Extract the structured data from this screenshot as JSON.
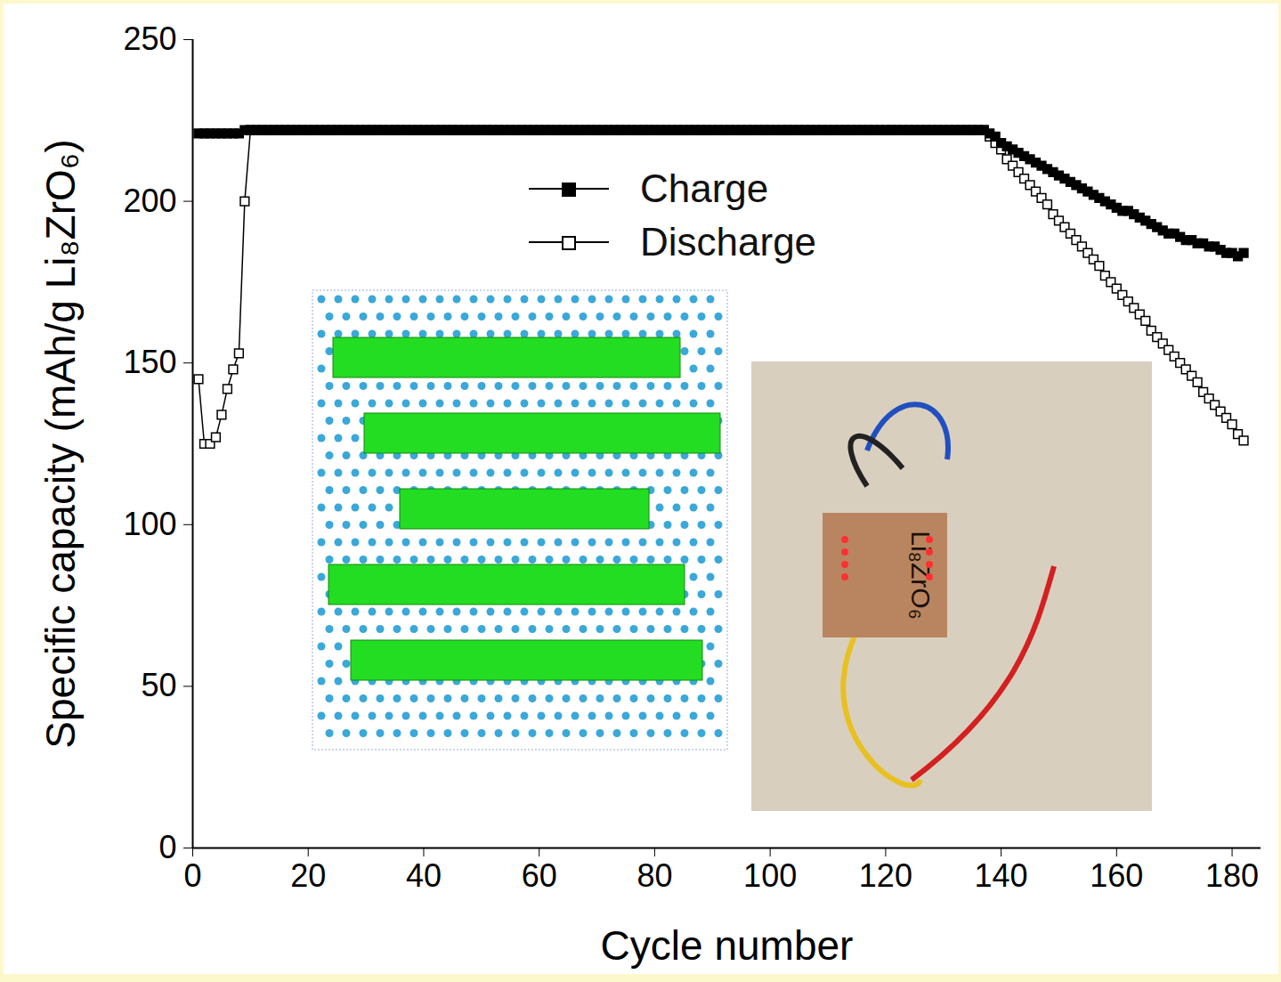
{
  "chart_data": {
    "type": "line",
    "x_label": "Cycle number",
    "y_label": "Specific capacity (mAh/g Li₈ZrO₆)",
    "xlim": [
      0,
      185
    ],
    "xticks": [
      0,
      20,
      40,
      60,
      80,
      100,
      120,
      140,
      160,
      180
    ],
    "ylim": [
      0,
      250
    ],
    "yticks": [
      0,
      50,
      100,
      150,
      200,
      250
    ],
    "grid": false,
    "legend": "top",
    "annotations": [
      {
        "text": "Li₈ZrO₆"
      }
    ],
    "x": [
      1,
      2,
      3,
      4,
      5,
      6,
      7,
      8,
      9,
      10,
      11,
      12,
      13,
      14,
      15,
      16,
      17,
      18,
      19,
      20,
      21,
      22,
      23,
      24,
      25,
      26,
      27,
      28,
      29,
      30,
      31,
      32,
      33,
      34,
      35,
      36,
      37,
      38,
      39,
      40,
      41,
      42,
      43,
      44,
      45,
      46,
      47,
      48,
      49,
      50,
      51,
      52,
      53,
      54,
      55,
      56,
      57,
      58,
      59,
      60,
      61,
      62,
      63,
      64,
      65,
      66,
      67,
      68,
      69,
      70,
      71,
      72,
      73,
      74,
      75,
      76,
      77,
      78,
      79,
      80,
      81,
      82,
      83,
      84,
      85,
      86,
      87,
      88,
      89,
      90,
      91,
      92,
      93,
      94,
      95,
      96,
      97,
      98,
      99,
      100,
      101,
      102,
      103,
      104,
      105,
      106,
      107,
      108,
      109,
      110,
      111,
      112,
      113,
      114,
      115,
      116,
      117,
      118,
      119,
      120,
      121,
      122,
      123,
      124,
      125,
      126,
      127,
      128,
      129,
      130,
      131,
      132,
      133,
      134,
      135,
      136,
      137,
      138,
      139,
      140,
      141,
      142,
      143,
      144,
      145,
      146,
      147,
      148,
      149,
      150,
      151,
      152,
      153,
      154,
      155,
      156,
      157,
      158,
      159,
      160,
      161,
      162,
      163,
      164,
      165,
      166,
      167,
      168,
      169,
      170,
      171,
      172,
      173,
      174,
      175,
      176,
      177,
      178,
      179,
      180,
      181,
      182
    ],
    "series": [
      {
        "name": "Charge",
        "color": "#000000",
        "marker": "square",
        "line_style": "solid",
        "values": [
          221,
          221,
          221,
          221,
          221,
          221,
          221,
          221,
          222,
          222,
          222,
          222,
          222,
          222,
          222,
          222,
          222,
          222,
          222,
          222,
          222,
          222,
          222,
          222,
          222,
          222,
          222,
          222,
          222,
          222,
          222,
          222,
          222,
          222,
          222,
          222,
          222,
          222,
          222,
          222,
          222,
          222,
          222,
          222,
          222,
          222,
          222,
          222,
          222,
          222,
          222,
          222,
          222,
          222,
          222,
          222,
          222,
          222,
          222,
          222,
          222,
          222,
          222,
          222,
          222,
          222,
          222,
          222,
          222,
          222,
          222,
          222,
          222,
          222,
          222,
          222,
          222,
          222,
          222,
          222,
          222,
          222,
          222,
          222,
          222,
          222,
          222,
          222,
          222,
          222,
          222,
          222,
          222,
          222,
          222,
          222,
          222,
          222,
          222,
          222,
          222,
          222,
          222,
          222,
          222,
          222,
          222,
          222,
          222,
          222,
          222,
          222,
          222,
          222,
          222,
          222,
          222,
          222,
          222,
          222,
          222,
          222,
          222,
          222,
          222,
          222,
          222,
          222,
          222,
          222,
          222,
          222,
          222,
          222,
          222,
          222,
          222,
          221,
          220,
          218,
          217,
          216,
          215,
          214,
          213,
          212,
          211,
          210,
          209,
          208,
          207,
          206,
          205,
          204,
          203,
          202,
          201,
          200,
          199,
          198,
          197,
          197,
          196,
          195,
          194,
          193,
          192,
          191,
          190,
          190,
          189,
          188,
          188,
          187,
          187,
          186,
          186,
          185,
          184,
          184,
          183,
          184
        ]
      },
      {
        "name": "Discharge",
        "color": "#000000",
        "marker": "square-open",
        "line_style": "solid",
        "values": [
          145,
          125,
          125,
          127,
          134,
          142,
          148,
          153,
          200,
          222,
          222,
          222,
          222,
          222,
          222,
          222,
          222,
          222,
          222,
          222,
          222,
          222,
          222,
          222,
          222,
          222,
          222,
          222,
          222,
          222,
          222,
          222,
          222,
          222,
          222,
          222,
          222,
          222,
          222,
          222,
          222,
          222,
          222,
          222,
          222,
          222,
          222,
          222,
          222,
          222,
          222,
          222,
          222,
          222,
          222,
          222,
          222,
          222,
          222,
          222,
          222,
          222,
          222,
          222,
          222,
          222,
          222,
          222,
          222,
          222,
          222,
          222,
          222,
          222,
          222,
          222,
          222,
          222,
          222,
          222,
          222,
          222,
          222,
          222,
          222,
          222,
          222,
          222,
          222,
          222,
          222,
          222,
          222,
          222,
          222,
          222,
          222,
          222,
          222,
          222,
          222,
          222,
          222,
          222,
          222,
          222,
          222,
          222,
          222,
          222,
          222,
          222,
          222,
          222,
          222,
          222,
          222,
          222,
          222,
          222,
          222,
          222,
          222,
          222,
          222,
          222,
          222,
          222,
          222,
          222,
          222,
          222,
          222,
          222,
          222,
          222,
          222,
          220,
          218,
          216,
          213,
          211,
          209,
          207,
          205,
          203,
          201,
          199,
          196,
          194,
          192,
          190,
          188,
          186,
          184,
          182,
          180,
          177,
          175,
          173,
          171,
          169,
          167,
          165,
          163,
          160,
          158,
          156,
          154,
          152,
          150,
          148,
          146,
          144,
          141,
          139,
          137,
          135,
          133,
          131,
          128,
          126
        ]
      }
    ]
  }
}
